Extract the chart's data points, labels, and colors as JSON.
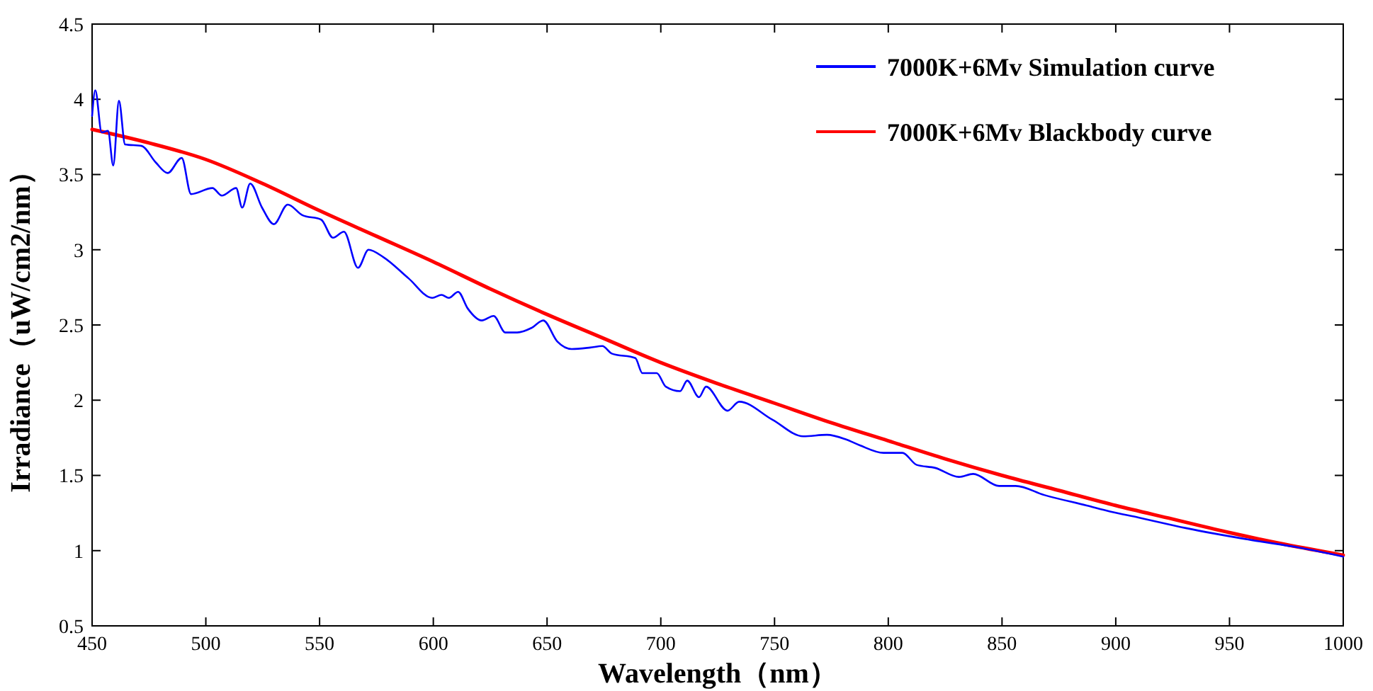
{
  "chart_data": {
    "type": "line",
    "xlabel": "Wavelength（nm）",
    "ylabel": "Irradiance（uW/cm2/nm）",
    "xlim": [
      450,
      1000
    ],
    "ylim": [
      0.5,
      4.5
    ],
    "xticks": [
      450,
      500,
      550,
      600,
      650,
      700,
      750,
      800,
      850,
      900,
      950,
      1000
    ],
    "yticks": [
      0.5,
      1,
      1.5,
      2,
      2.5,
      3,
      3.5,
      4,
      4.5
    ],
    "grid": false,
    "legend": "top right",
    "marker": "none",
    "line_style": "solid",
    "series": [
      {
        "name": "7000K+6Mv Simulation curve",
        "color": "#0000ff",
        "x": [
          450,
          451.4,
          454.2,
          457,
          459.3,
          461.8,
          464.5,
          471.8,
          478,
          483.2,
          489.4,
          493.5,
          502.9,
          507,
          513.3,
          516,
          519.5,
          524.7,
          529.9,
          536,
          542.4,
          550.7,
          555.9,
          560.7,
          566.9,
          571.5,
          578.1,
          589.1,
          599.5,
          603.6,
          606.8,
          610.9,
          615.1,
          621.3,
          626.5,
          631.7,
          636.9,
          643.1,
          648.3,
          654.5,
          660.8,
          669,
          674.3,
          678.4,
          688.8,
          691.9,
          698.2,
          702.2,
          708.5,
          711.6,
          716.8,
          719.9,
          729.3,
          734.5,
          749.1,
          762.6,
          773,
          781.3,
          787.5,
          797.9,
          806.2,
          812.5,
          820.6,
          831.1,
          837.3,
          848.7,
          856,
          868.5,
          887.2,
          897.5,
          910,
          930.8,
          959.8,
          980.6,
          1000
        ],
        "values": [
          3.89,
          4.06,
          3.78,
          3.79,
          3.56,
          3.99,
          3.7,
          3.69,
          3.58,
          3.51,
          3.61,
          3.37,
          3.41,
          3.36,
          3.41,
          3.28,
          3.44,
          3.28,
          3.17,
          3.3,
          3.23,
          3.2,
          3.08,
          3.12,
          2.88,
          3,
          2.95,
          2.81,
          2.68,
          2.7,
          2.68,
          2.72,
          2.61,
          2.53,
          2.56,
          2.45,
          2.45,
          2.48,
          2.53,
          2.39,
          2.34,
          2.35,
          2.36,
          2.31,
          2.28,
          2.18,
          2.18,
          2.09,
          2.06,
          2.13,
          2.02,
          2.09,
          1.93,
          1.99,
          1.87,
          1.76,
          1.77,
          1.74,
          1.7,
          1.65,
          1.65,
          1.57,
          1.55,
          1.49,
          1.51,
          1.43,
          1.43,
          1.37,
          1.3,
          1.26,
          1.22,
          1.15,
          1.07,
          1.02,
          0.96
        ]
      },
      {
        "name": "7000K+6Mv Blackbody curve",
        "color": "#ff0000",
        "x": [
          450,
          475,
          500,
          525,
          550,
          575,
          600,
          625,
          650,
          675,
          700,
          725,
          750,
          775,
          800,
          825,
          850,
          875,
          900,
          925,
          950,
          975,
          1000
        ],
        "values": [
          3.8,
          3.71,
          3.6,
          3.44,
          3.26,
          3.09,
          2.92,
          2.74,
          2.57,
          2.41,
          2.25,
          2.11,
          1.98,
          1.85,
          1.73,
          1.61,
          1.5,
          1.4,
          1.3,
          1.21,
          1.12,
          1.04,
          0.97
        ]
      }
    ]
  }
}
